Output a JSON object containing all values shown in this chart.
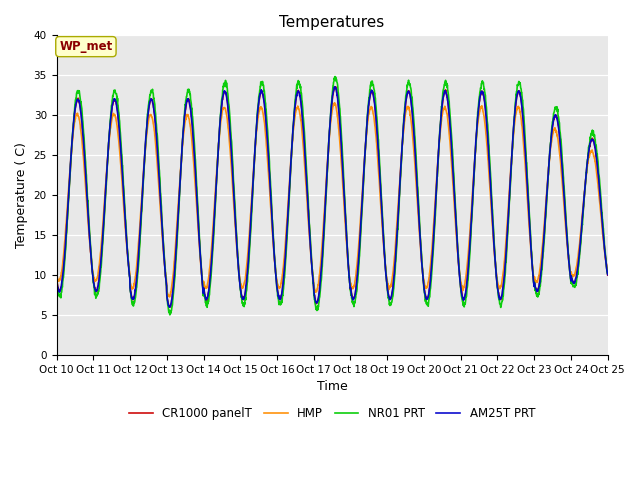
{
  "title": "Temperatures",
  "xlabel": "Time",
  "ylabel": "Temperature ( C)",
  "xlim": [
    0,
    15
  ],
  "ylim": [
    0,
    40
  ],
  "yticks": [
    0,
    5,
    10,
    15,
    20,
    25,
    30,
    35,
    40
  ],
  "xtick_labels": [
    "Oct 10",
    "Oct 11",
    "Oct 12",
    "Oct 13",
    "Oct 14",
    "Oct 15",
    "Oct 16",
    "Oct 17",
    "Oct 18",
    "Oct 19",
    "Oct 20",
    "Oct 21",
    "Oct 22",
    "Oct 23",
    "Oct 24",
    "Oct 25"
  ],
  "xtick_positions": [
    0,
    1,
    2,
    3,
    4,
    5,
    6,
    7,
    8,
    9,
    10,
    11,
    12,
    13,
    14,
    15
  ],
  "annotation_text": "WP_met",
  "series": [
    {
      "name": "CR1000 panelT",
      "color": "#cc0000",
      "lw": 1.2
    },
    {
      "name": "HMP",
      "color": "#ff8c00",
      "lw": 1.2
    },
    {
      "name": "NR01 PRT",
      "color": "#00cc00",
      "lw": 1.2
    },
    {
      "name": "AM25T PRT",
      "color": "#0000cc",
      "lw": 1.2
    }
  ],
  "bg_color": "#e8e8e8",
  "title_fontsize": 11,
  "axis_fontsize": 9,
  "day_bases": [
    20,
    20,
    19.5,
    19,
    20,
    20,
    20,
    20,
    20,
    20,
    20,
    20,
    20,
    19,
    18
  ],
  "day_amplitudes": [
    12,
    12,
    12.5,
    13,
    13,
    13,
    13,
    13.5,
    13,
    13,
    13,
    13,
    13,
    11,
    9
  ]
}
